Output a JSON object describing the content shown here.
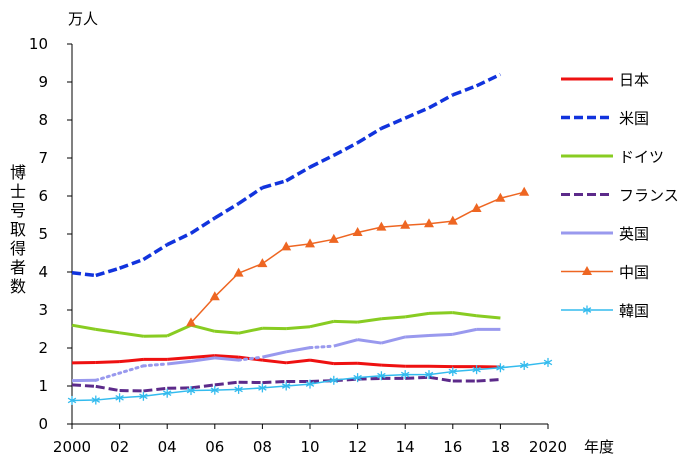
{
  "chart_data": {
    "type": "line",
    "title": "",
    "ylabel": "博士号取得者数",
    "yunit": "万人",
    "xlabel": "年度",
    "xlim": [
      2000,
      2020
    ],
    "ylim": [
      0,
      10
    ],
    "grid": false,
    "legend_placement": "right",
    "xticks": [
      2000,
      2002,
      2004,
      2006,
      2008,
      2010,
      2012,
      2014,
      2016,
      2018,
      2020
    ],
    "xtick_labels": [
      "2000",
      "02",
      "04",
      "06",
      "08",
      "10",
      "12",
      "14",
      "16",
      "18",
      "2020"
    ],
    "yticks": [
      0,
      1,
      2,
      3,
      4,
      5,
      6,
      7,
      8,
      9,
      10
    ],
    "ytick_labels": [
      "0",
      "1",
      "2",
      "3",
      "4",
      "5",
      "6",
      "7",
      "8",
      "9",
      "10"
    ],
    "series": [
      {
        "name": "日本",
        "color": "#ee1111",
        "style": "solid",
        "width": 3,
        "marker": "none",
        "x": [
          2000,
          2001,
          2002,
          2003,
          2004,
          2005,
          2006,
          2007,
          2008,
          2009,
          2010,
          2011,
          2012,
          2013,
          2014,
          2015,
          2016,
          2017,
          2018
        ],
        "values": [
          1.61,
          1.62,
          1.64,
          1.7,
          1.7,
          1.75,
          1.8,
          1.76,
          1.68,
          1.61,
          1.68,
          1.59,
          1.6,
          1.55,
          1.52,
          1.52,
          1.51,
          1.51,
          1.5
        ]
      },
      {
        "name": "米国",
        "color": "#1133dd",
        "style": "dashed",
        "width": 3.5,
        "marker": "none",
        "x": [
          2000,
          2001,
          2002,
          2003,
          2004,
          2005,
          2006,
          2007,
          2008,
          2009,
          2010,
          2011,
          2012,
          2013,
          2014,
          2015,
          2016,
          2017,
          2018
        ],
        "values": [
          3.98,
          3.91,
          4.1,
          4.33,
          4.72,
          5.02,
          5.42,
          5.8,
          6.22,
          6.4,
          6.76,
          7.07,
          7.4,
          7.78,
          8.05,
          8.32,
          8.66,
          8.9,
          9.2
        ]
      },
      {
        "name": "ドイツ",
        "color": "#88cc22",
        "style": "solid",
        "width": 3,
        "marker": "none",
        "x": [
          2000,
          2001,
          2002,
          2003,
          2004,
          2005,
          2006,
          2007,
          2008,
          2009,
          2010,
          2011,
          2012,
          2013,
          2014,
          2015,
          2016,
          2017,
          2018
        ],
        "values": [
          2.6,
          2.49,
          2.4,
          2.31,
          2.32,
          2.6,
          2.44,
          2.39,
          2.52,
          2.51,
          2.56,
          2.7,
          2.68,
          2.77,
          2.82,
          2.91,
          2.93,
          2.85,
          2.79
        ]
      },
      {
        "name": "フランス",
        "color": "#5c2a8a",
        "style": "dashed",
        "width": 3,
        "marker": "none",
        "x": [
          2000,
          2001,
          2002,
          2003,
          2004,
          2005,
          2006,
          2007,
          2008,
          2009,
          2010,
          2011,
          2012,
          2013,
          2014,
          2015,
          2016,
          2017,
          2018
        ],
        "values": [
          1.03,
          0.99,
          0.88,
          0.87,
          0.94,
          0.95,
          1.03,
          1.1,
          1.09,
          1.12,
          1.12,
          1.14,
          1.18,
          1.2,
          1.2,
          1.23,
          1.13,
          1.13,
          1.17
        ]
      },
      {
        "name": "英国",
        "color": "#9999ee",
        "style": "solid",
        "width": 3,
        "marker": "none",
        "x": [
          2000,
          2001,
          2002,
          2003,
          2004,
          2005,
          2006,
          2007,
          2008,
          2009,
          2010,
          2011,
          2012,
          2013,
          2014,
          2015,
          2016,
          2017,
          2018
        ],
        "values": [
          1.14,
          1.15,
          null,
          1.53,
          1.58,
          1.65,
          1.74,
          1.68,
          1.76,
          1.9,
          2.01,
          2.05,
          2.22,
          2.13,
          2.29,
          2.33,
          2.36,
          2.49,
          2.49
        ],
        "dotted_x": [
          2001,
          2003,
          2007,
          2010
        ]
      },
      {
        "name": "中国",
        "color": "#ee6622",
        "style": "solid",
        "width": 1.5,
        "marker": "triangle",
        "x": [
          2005,
          2006,
          2007,
          2008,
          2009,
          2010,
          2011,
          2012,
          2013,
          2014,
          2015,
          2016,
          2017,
          2018,
          2019
        ],
        "values": [
          2.66,
          3.35,
          3.97,
          4.22,
          4.66,
          4.74,
          4.86,
          5.04,
          5.18,
          5.23,
          5.27,
          5.34,
          5.67,
          5.94,
          6.1
        ]
      },
      {
        "name": "韓国",
        "color": "#33bbee",
        "style": "solid",
        "width": 1.5,
        "marker": "asterisk",
        "x": [
          2000,
          2001,
          2002,
          2003,
          2004,
          2005,
          2006,
          2007,
          2008,
          2009,
          2010,
          2011,
          2012,
          2013,
          2014,
          2015,
          2016,
          2017,
          2018,
          2019,
          2020
        ],
        "values": [
          0.62,
          0.63,
          0.69,
          0.73,
          0.81,
          0.88,
          0.89,
          0.91,
          0.95,
          1.0,
          1.05,
          1.15,
          1.22,
          1.27,
          1.3,
          1.3,
          1.38,
          1.43,
          1.48,
          1.54,
          1.62
        ]
      }
    ]
  }
}
